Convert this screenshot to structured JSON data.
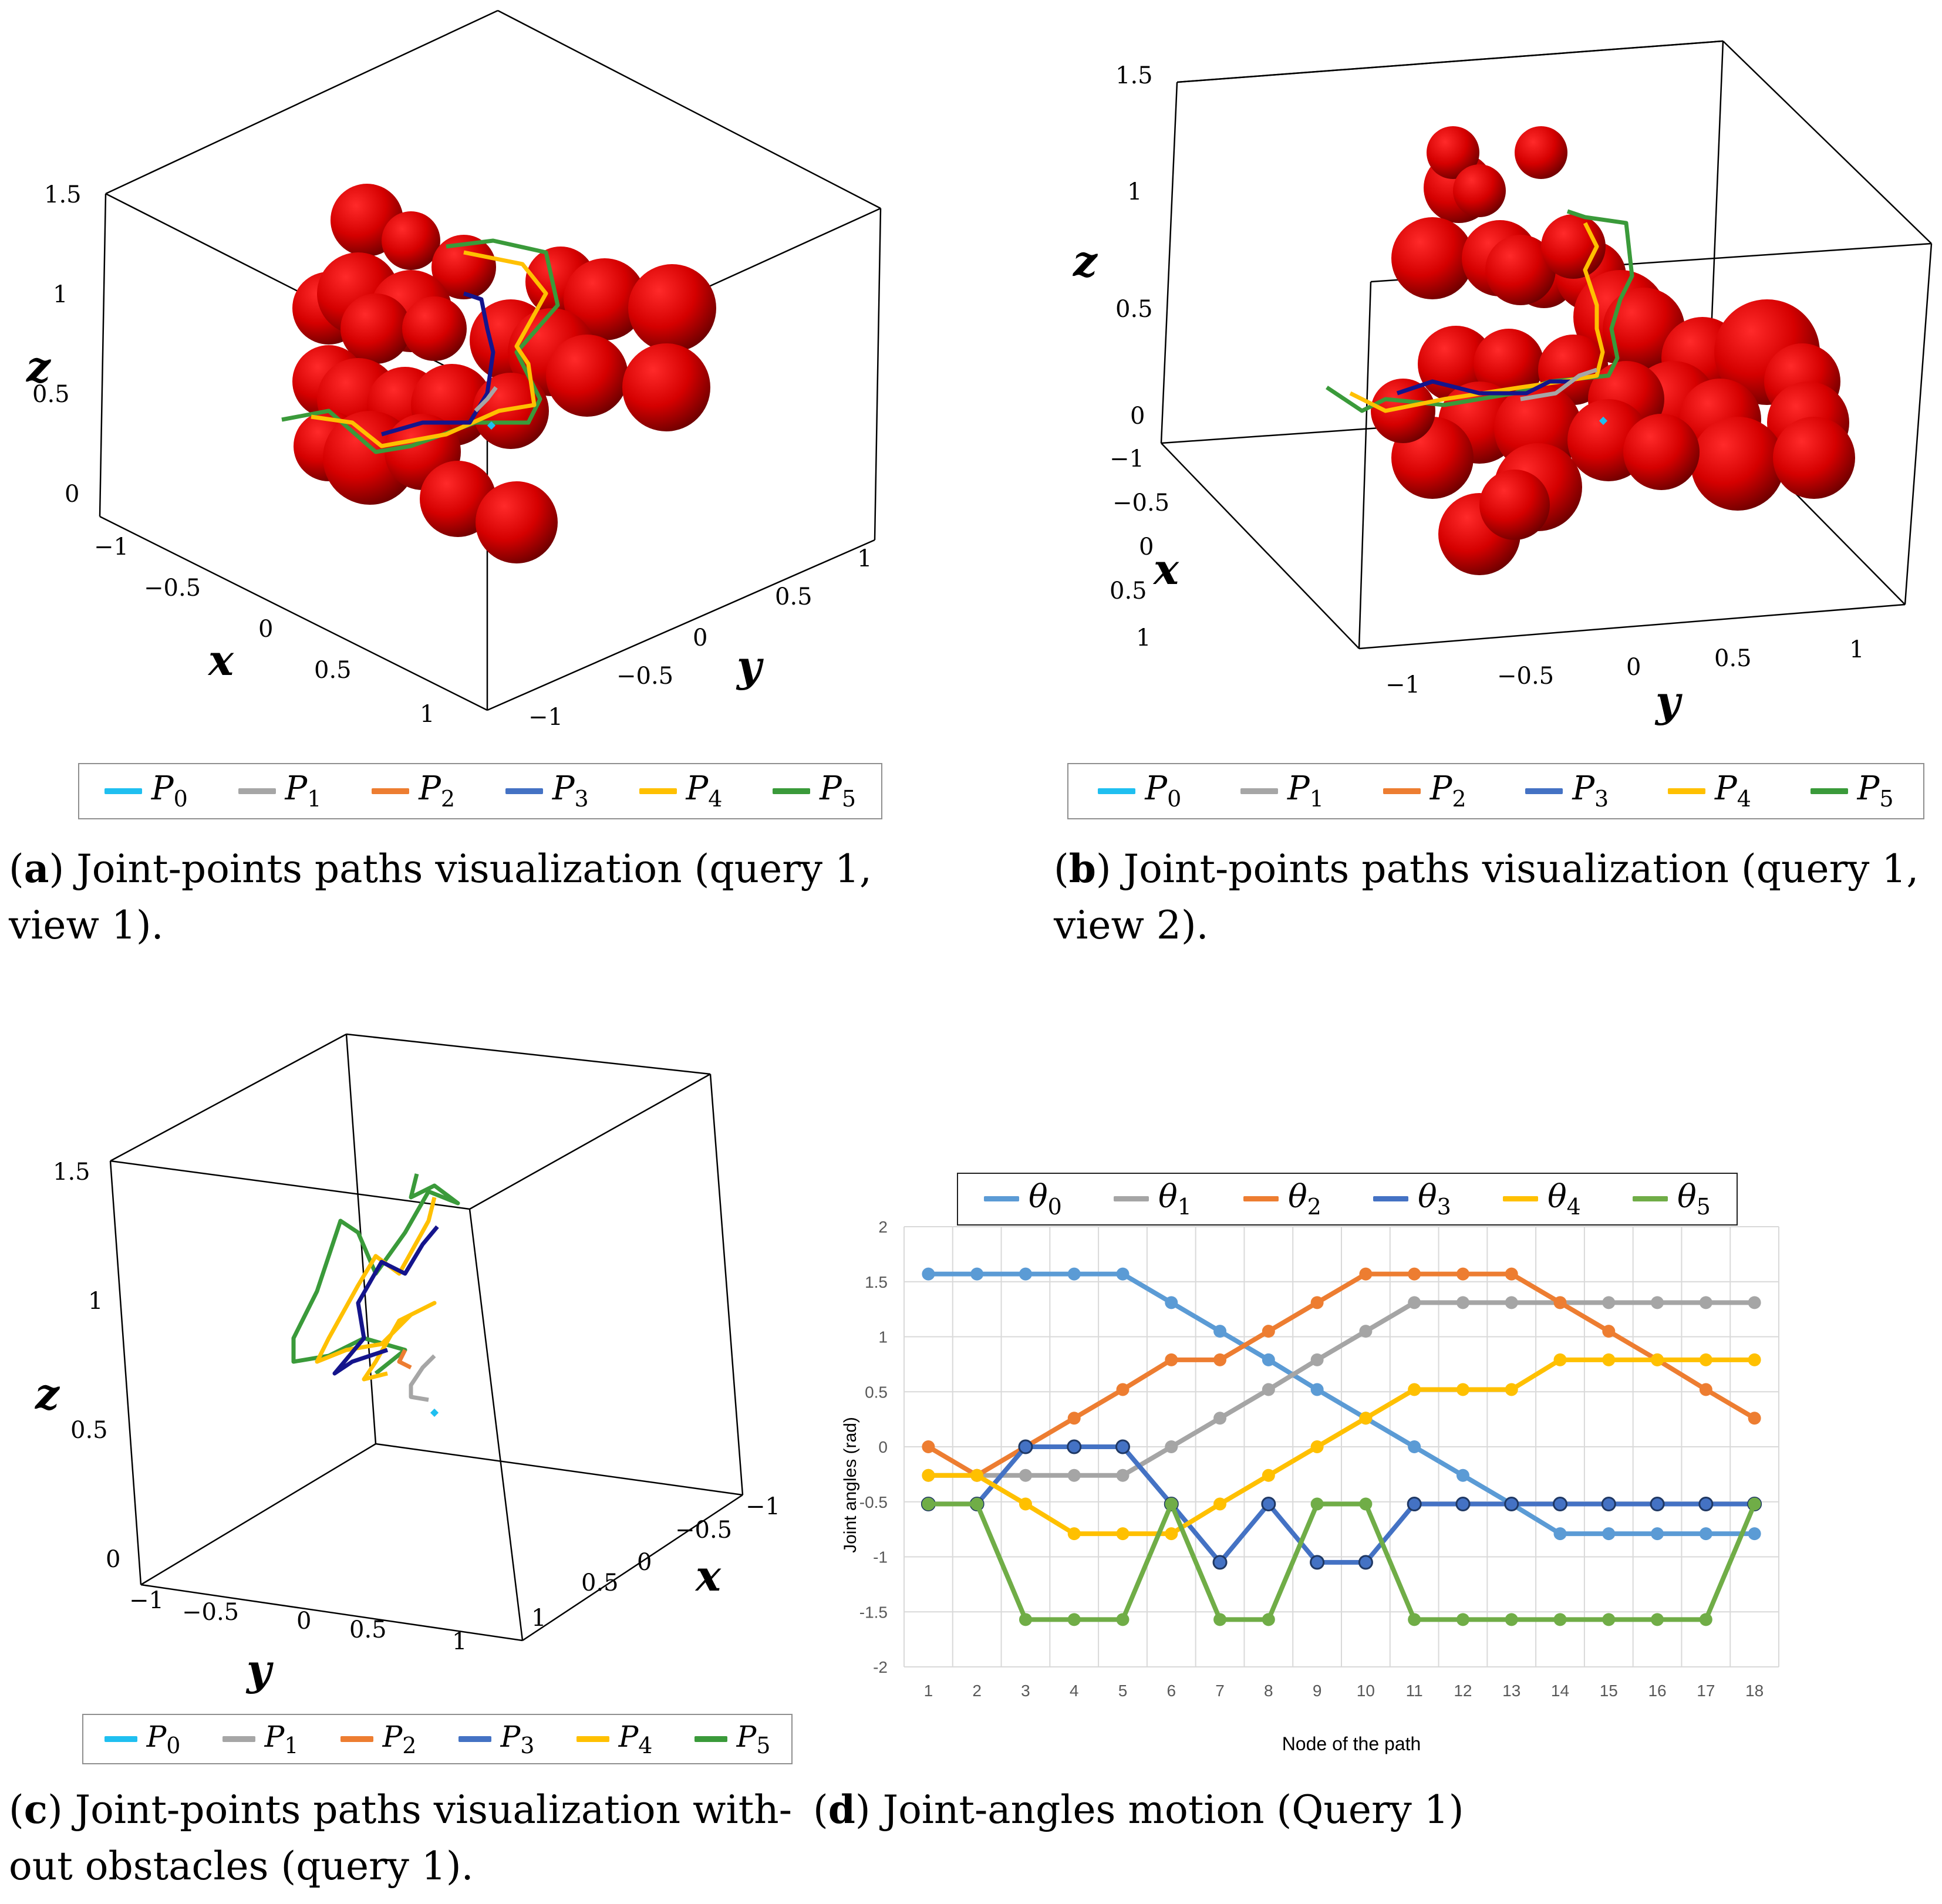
{
  "legend_entries": [
    {
      "sym": "P",
      "sub": "0",
      "color": "#1fbff0"
    },
    {
      "sym": "P",
      "sub": "1",
      "color": "#a6a6a6"
    },
    {
      "sym": "P",
      "sub": "2",
      "color": "#ed7d31"
    },
    {
      "sym": "P",
      "sub": "3",
      "color": "#4472c4"
    },
    {
      "sym": "P",
      "sub": "4",
      "color": "#ffc000"
    },
    {
      "sym": "P",
      "sub": "5",
      "color": "#3a9a3a"
    }
  ],
  "panel_a": {
    "tag": "a",
    "caption_line1": ") Joint-points paths visualization (query 1,",
    "caption_line2": "view 1).",
    "z_ticks": [
      "1.5",
      "1",
      "0.5",
      "0"
    ],
    "x_ticks": [
      "−1",
      "−0.5",
      "0",
      "0.5",
      "1"
    ],
    "y_ticks": [
      "1",
      "0.5",
      "0",
      "−0.5",
      "−1"
    ],
    "axis_x": "x",
    "axis_y": "y",
    "axis_z": "z"
  },
  "panel_b": {
    "tag": "b",
    "caption_line1": ") Joint-points paths visualization (query 1,",
    "caption_line2": "view 2).",
    "z_ticks": [
      "1.5",
      "1",
      "0.5",
      "0"
    ],
    "x_ticks": [
      "−1",
      "−0.5",
      "0",
      "0.5",
      "1"
    ],
    "y_ticks": [
      "−1",
      "−0.5",
      "0",
      "0.5",
      "1"
    ],
    "axis_x": "x",
    "axis_y": "y",
    "axis_z": "z"
  },
  "panel_c": {
    "tag": "c",
    "caption_line1": ") Joint-points paths visualization with-",
    "caption_line2": "out obstacles (query 1).",
    "z_ticks": [
      "1.5",
      "1",
      "0.5",
      "0"
    ],
    "y_ticks": [
      "−1",
      "−0.5",
      "0",
      "0.5",
      "1"
    ],
    "x_ticks": [
      "−1",
      "−0.5",
      "0",
      "0.5",
      "1"
    ],
    "axis_x": "x",
    "axis_y": "y",
    "axis_z": "z"
  },
  "panel_d": {
    "tag": "d",
    "caption_line1": ") Joint-angles motion (Query 1)"
  },
  "chart_data": {
    "type": "line",
    "title": "",
    "xlabel": "Node of the path",
    "ylabel": "Joint angles (rad)",
    "ylim": [
      -2,
      2
    ],
    "yticks": [
      "2",
      "1.5",
      "1",
      "0.5",
      "0",
      "-0.5",
      "-1",
      "-1.5",
      "-2"
    ],
    "grid": true,
    "legend_position": "top",
    "x": [
      1,
      2,
      3,
      4,
      5,
      6,
      7,
      8,
      9,
      10,
      11,
      12,
      13,
      14,
      15,
      16,
      17,
      18
    ],
    "series": [
      {
        "name": "θ",
        "sub": "0",
        "color": "#5b9bd5",
        "values": [
          1.57,
          1.57,
          1.57,
          1.57,
          1.57,
          1.31,
          1.05,
          0.79,
          0.52,
          0.26,
          0,
          -0.26,
          -0.52,
          -0.79,
          -0.79,
          -0.79,
          -0.79,
          -0.79
        ]
      },
      {
        "name": "θ",
        "sub": "1",
        "color": "#a5a5a5",
        "values": [
          -0.26,
          -0.26,
          -0.26,
          -0.26,
          -0.26,
          0,
          0.26,
          0.52,
          0.79,
          1.05,
          1.31,
          1.31,
          1.31,
          1.31,
          1.31,
          1.31,
          1.31,
          1.31
        ]
      },
      {
        "name": "θ",
        "sub": "2",
        "color": "#ed7d31",
        "values": [
          0,
          -0.26,
          0,
          0.26,
          0.52,
          0.79,
          0.79,
          1.05,
          1.31,
          1.57,
          1.57,
          1.57,
          1.57,
          1.31,
          1.05,
          0.79,
          0.52,
          0.26
        ]
      },
      {
        "name": "θ",
        "sub": "3",
        "color": "#4472c4",
        "values": [
          -0.52,
          -0.52,
          0,
          0,
          0,
          -0.52,
          -1.05,
          -0.52,
          -1.05,
          -1.05,
          -0.52,
          -0.52,
          -0.52,
          -0.52,
          -0.52,
          -0.52,
          -0.52,
          -0.52
        ]
      },
      {
        "name": "θ",
        "sub": "4",
        "color": "#ffc000",
        "values": [
          -0.26,
          -0.26,
          -0.52,
          -0.79,
          -0.79,
          -0.79,
          -0.52,
          -0.26,
          0,
          0.26,
          0.52,
          0.52,
          0.52,
          0.79,
          0.79,
          0.79,
          0.79,
          0.79
        ]
      },
      {
        "name": "θ",
        "sub": "5",
        "color": "#70ad47",
        "values": [
          -0.52,
          -0.52,
          -1.57,
          -1.57,
          -1.57,
          -0.52,
          -1.57,
          -1.57,
          -0.52,
          -0.52,
          -1.57,
          -1.57,
          -1.57,
          -1.57,
          -1.57,
          -1.57,
          -1.57,
          -0.52
        ]
      }
    ]
  }
}
